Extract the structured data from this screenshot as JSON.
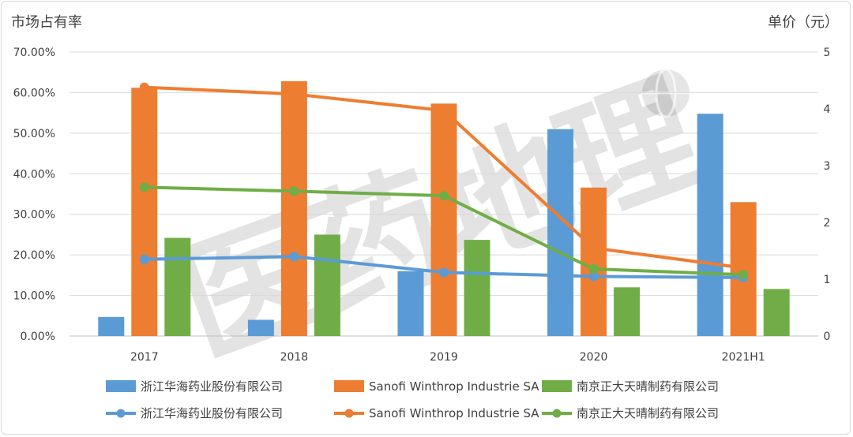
{
  "chart_data": {
    "type": "bar",
    "title": "",
    "ylabel": "市场占有率",
    "y2label": "单价（元）",
    "categories": [
      "2017",
      "2018",
      "2019",
      "2020",
      "2021H1"
    ],
    "ylim": [
      0,
      0.7
    ],
    "y_ticks": [
      "0.00%",
      "10.00%",
      "20.00%",
      "30.00%",
      "40.00%",
      "50.00%",
      "60.00%",
      "70.00%"
    ],
    "y2lim": [
      0,
      5
    ],
    "y2_ticks": [
      "0",
      "1",
      "2",
      "3",
      "4",
      "5"
    ],
    "grid": true,
    "legend_position": "bottom",
    "watermark": "医药地理",
    "bar_series": [
      {
        "name": "浙江华海药业股份有限公司",
        "color": "#5b9bd5",
        "values": [
          0.047,
          0.04,
          0.16,
          0.51,
          0.548
        ]
      },
      {
        "name": "Sanofi Winthrop Industrie SA",
        "color": "#ed7d31",
        "values": [
          0.612,
          0.628,
          0.573,
          0.366,
          0.33
        ]
      },
      {
        "name": "南京正大天晴制药有限公司",
        "color": "#70ad47",
        "values": [
          0.242,
          0.25,
          0.237,
          0.12,
          0.116
        ]
      }
    ],
    "line_series": [
      {
        "name": "浙江华海药业股份有限公司",
        "color": "#5b9bd5",
        "values": [
          1.35,
          1.4,
          1.12,
          1.05,
          1.03
        ]
      },
      {
        "name": "Sanofi Winthrop Industrie SA",
        "color": "#ed7d31",
        "values": [
          4.38,
          4.26,
          3.97,
          1.55,
          1.2
        ]
      },
      {
        "name": "南京正大天晴制药有限公司",
        "color": "#70ad47",
        "values": [
          2.62,
          2.55,
          2.47,
          1.18,
          1.08
        ]
      }
    ]
  }
}
